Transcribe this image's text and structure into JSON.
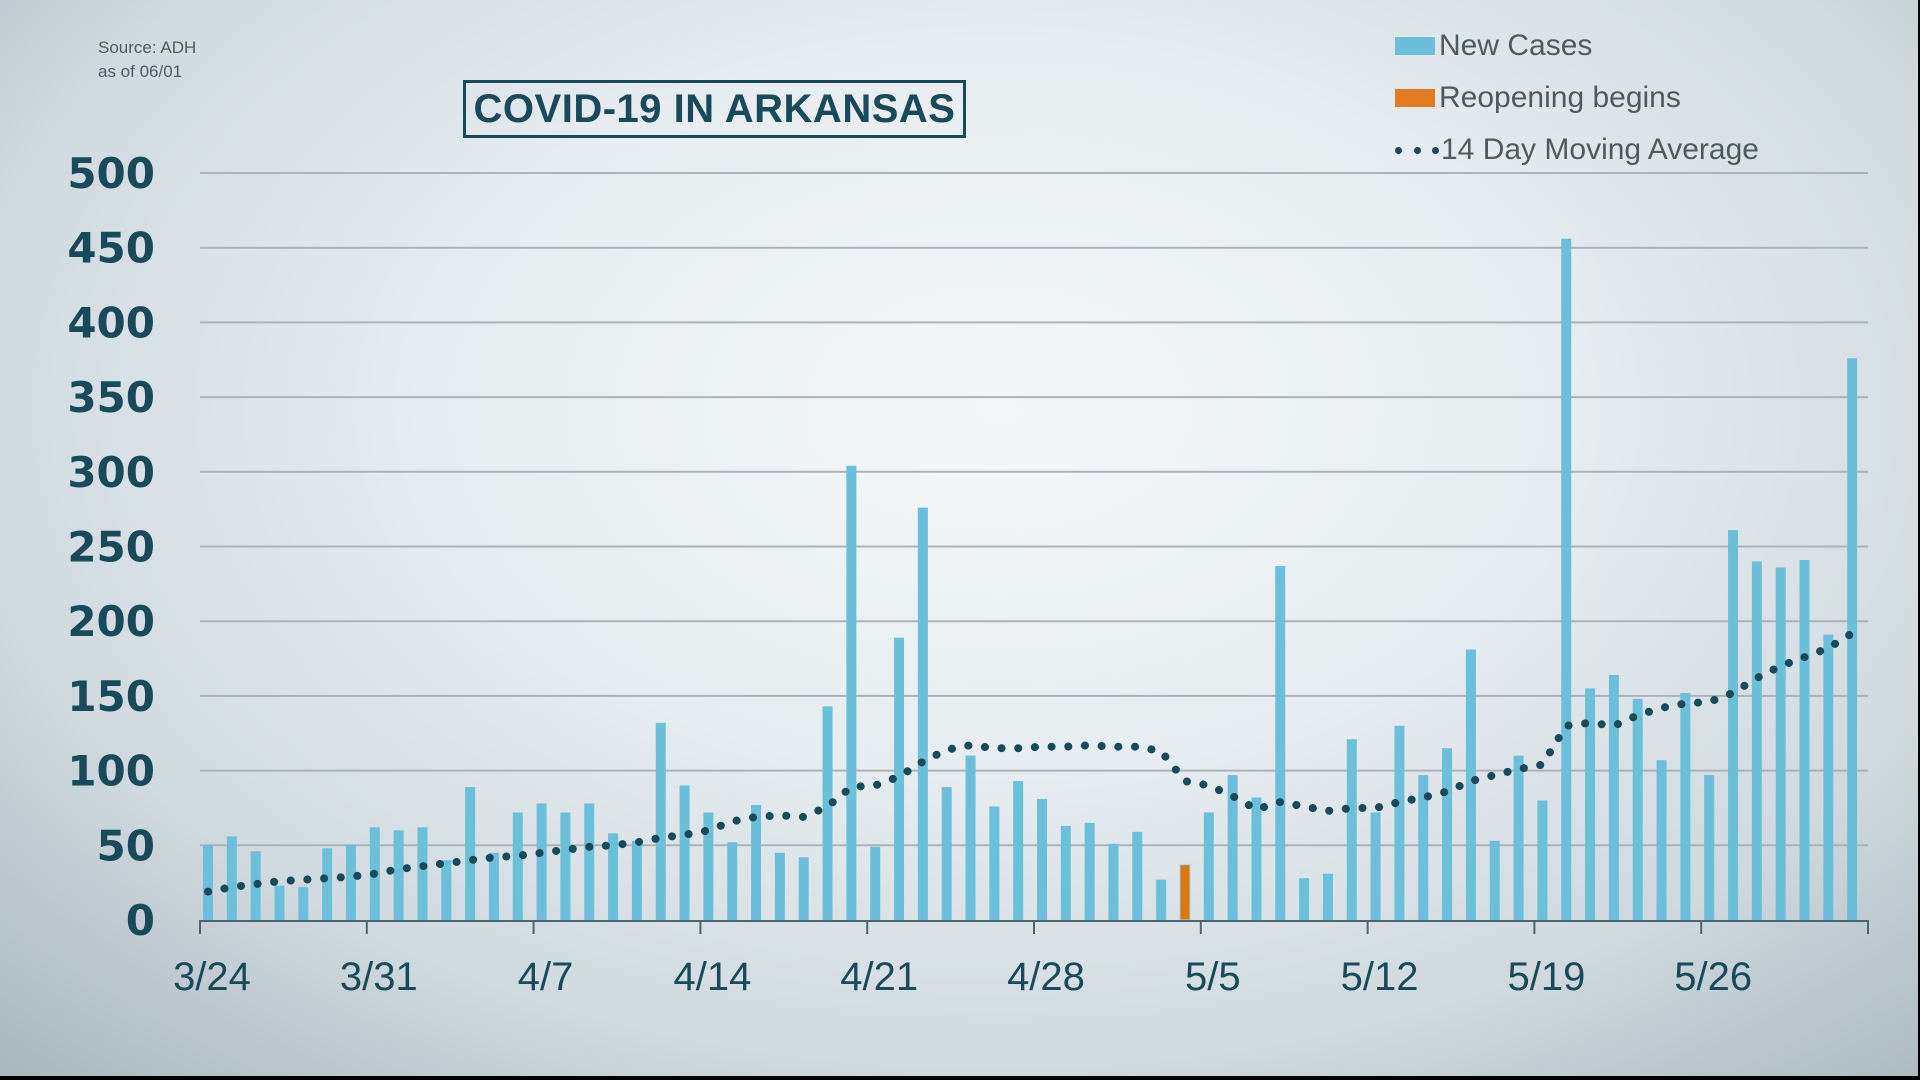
{
  "source": {
    "line1": "Source: ADH",
    "line2": "as of 06/01"
  },
  "title": "COVID-19 IN ARKANSAS",
  "legend": [
    {
      "label": "New Cases",
      "type": "bar",
      "color": "#6bbfdb"
    },
    {
      "label": "Reopening begins",
      "type": "bar",
      "color": "#e07b24"
    },
    {
      "label": "14 Day Moving Average",
      "type": "dots",
      "color": "#184a59"
    }
  ],
  "colors": {
    "bar": "#6bbfdb",
    "highlight": "#d9780e",
    "average": "#184a59",
    "grid": "#a9b3b8",
    "axis": "#4a6470",
    "text": "#184a59"
  },
  "chart_data": {
    "type": "bar",
    "title": "COVID-19 IN ARKANSAS",
    "xlabel": "",
    "ylabel": "",
    "ylim": [
      0,
      500
    ],
    "yticks": [
      0,
      50,
      100,
      150,
      200,
      250,
      300,
      350,
      400,
      450,
      500
    ],
    "grid": true,
    "legend_position": "top-right",
    "x_tick_labels": [
      "3/24",
      "3/31",
      "4/7",
      "4/14",
      "4/21",
      "4/28",
      "5/5",
      "5/12",
      "5/19",
      "5/26",
      ""
    ],
    "x_tick_day_index": [
      0,
      7,
      14,
      21,
      28,
      35,
      42,
      49,
      56,
      63,
      70
    ],
    "start_date": "3/24",
    "end_date": "6/1",
    "highlight": {
      "date": "5/4",
      "index": 41,
      "label": "Reopening begins"
    },
    "categories": [
      "3/24",
      "3/25",
      "3/26",
      "3/27",
      "3/28",
      "3/29",
      "3/30",
      "3/31",
      "4/1",
      "4/2",
      "4/3",
      "4/4",
      "4/5",
      "4/6",
      "4/7",
      "4/8",
      "4/9",
      "4/10",
      "4/11",
      "4/12",
      "4/13",
      "4/14",
      "4/15",
      "4/16",
      "4/17",
      "4/18",
      "4/19",
      "4/20",
      "4/21",
      "4/22",
      "4/23",
      "4/24",
      "4/25",
      "4/26",
      "4/27",
      "4/28",
      "4/29",
      "4/30",
      "5/1",
      "5/2",
      "5/3",
      "5/4",
      "5/5",
      "5/6",
      "5/7",
      "5/8",
      "5/9",
      "5/10",
      "5/11",
      "5/12",
      "5/13",
      "5/14",
      "5/15",
      "5/16",
      "5/17",
      "5/18",
      "5/19",
      "5/20",
      "5/21",
      "5/22",
      "5/23",
      "5/24",
      "5/25",
      "5/26",
      "5/27",
      "5/28",
      "5/29",
      "5/30",
      "5/31",
      "6/1"
    ],
    "series": [
      {
        "name": "New Cases",
        "type": "bar",
        "values": [
          50,
          56,
          46,
          23,
          22,
          48,
          50,
          62,
          60,
          62,
          40,
          89,
          45,
          72,
          78,
          72,
          78,
          58,
          53,
          132,
          90,
          72,
          52,
          77,
          45,
          42,
          143,
          304,
          49,
          189,
          276,
          89,
          110,
          76,
          93,
          81,
          63,
          65,
          51,
          59,
          27,
          37,
          72,
          97,
          82,
          237,
          28,
          31,
          121,
          72,
          130,
          97,
          115,
          181,
          53,
          110,
          80,
          456,
          155,
          164,
          148,
          107,
          152,
          97,
          261,
          240,
          236,
          241,
          191,
          376
        ]
      },
      {
        "name": "14 Day Moving Average",
        "type": "line",
        "style": "dotted",
        "values": [
          19,
          22,
          24,
          26,
          27,
          28,
          29,
          31,
          34,
          36,
          38,
          40,
          42,
          43,
          45,
          47,
          49,
          50,
          52,
          55,
          57,
          60,
          66,
          69,
          70,
          69,
          76,
          89,
          90,
          96,
          106,
          114,
          117,
          115,
          115,
          116,
          116,
          117,
          116,
          116,
          113,
          93,
          90,
          83,
          74,
          79,
          76,
          73,
          75,
          75,
          79,
          82,
          86,
          93,
          97,
          101,
          104,
          130,
          132,
          130,
          137,
          142,
          145,
          146,
          152,
          162,
          170,
          176,
          182,
          192
        ]
      }
    ]
  }
}
